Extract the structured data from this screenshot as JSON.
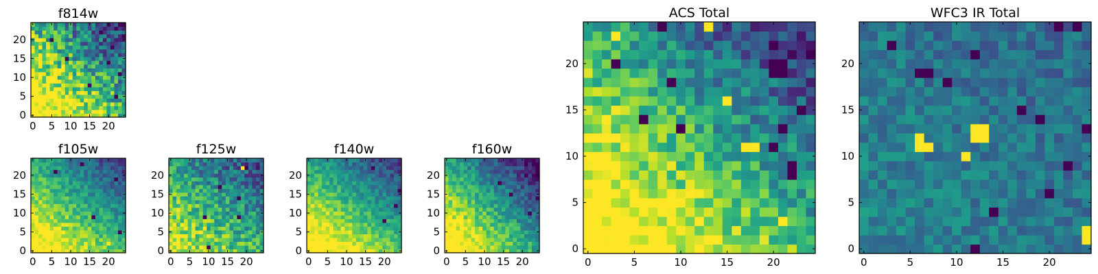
{
  "chart_data": [
    {
      "type": "heatmap",
      "id": "f814w",
      "title": "f814w",
      "colormap": "viridis",
      "grid_size": 25,
      "xlim": [
        0,
        24
      ],
      "ylim": [
        0,
        24
      ],
      "xticks": [
        0,
        5,
        10,
        15,
        20
      ],
      "yticks": [
        0,
        5,
        10,
        15,
        20
      ],
      "value_range": [
        0,
        1
      ],
      "center_brightness": 0.68,
      "gradient": [
        -0.55,
        0.55,
        -0.6,
        0.6
      ],
      "noise": 0.28,
      "blob_bias": 0,
      "dark_cells": [
        [
          18,
          22
        ],
        [
          21,
          18
        ],
        [
          15,
          8
        ],
        [
          22,
          5
        ],
        [
          5,
          20
        ],
        [
          20,
          14
        ],
        [
          23,
          11
        ],
        [
          9,
          15
        ]
      ],
      "bright_cells": [
        [
          2,
          4
        ],
        [
          6,
          7
        ],
        [
          12,
          3
        ]
      ],
      "seed": 11
    },
    {
      "type": "heatmap",
      "id": "f105w",
      "title": "f105w",
      "colormap": "viridis",
      "grid_size": 25,
      "xlim": [
        0,
        24
      ],
      "ylim": [
        0,
        24
      ],
      "xticks": [
        0,
        5,
        10,
        15,
        20
      ],
      "yticks": [
        0,
        5,
        10,
        15,
        20
      ],
      "value_range": [
        0,
        1
      ],
      "center_brightness": 0.66,
      "gradient": [
        -0.45,
        0.45,
        -0.55,
        0.55
      ],
      "noise": 0.14,
      "blob_bias": 0,
      "dark_cells": [
        [
          6,
          21
        ],
        [
          13,
          23
        ],
        [
          23,
          5
        ],
        [
          16,
          9
        ],
        [
          22,
          19
        ]
      ],
      "bright_cells": [
        [
          2,
          3
        ],
        [
          20,
          2
        ]
      ],
      "seed": 23
    },
    {
      "type": "heatmap",
      "id": "f125w",
      "title": "f125w",
      "colormap": "viridis",
      "grid_size": 25,
      "xlim": [
        0,
        24
      ],
      "ylim": [
        0,
        24
      ],
      "xticks": [
        0,
        5,
        10,
        15,
        20
      ],
      "yticks": [
        0,
        5,
        10,
        15,
        20
      ],
      "value_range": [
        0,
        1
      ],
      "center_brightness": 0.6,
      "gradient": [
        -0.35,
        0.35,
        -0.45,
        0.45
      ],
      "noise": 0.22,
      "blob_bias": 0,
      "dark_cells": [
        [
          9,
          9
        ],
        [
          10,
          1
        ],
        [
          18,
          14
        ],
        [
          18,
          9
        ],
        [
          20,
          22
        ],
        [
          13,
          17
        ]
      ],
      "bright_cells": [
        [
          19,
          22
        ],
        [
          4,
          6
        ]
      ],
      "seed": 37
    },
    {
      "type": "heatmap",
      "id": "f140w",
      "title": "f140w",
      "colormap": "viridis",
      "grid_size": 25,
      "xlim": [
        0,
        24
      ],
      "ylim": [
        0,
        24
      ],
      "xticks": [
        0,
        5,
        10,
        15,
        20
      ],
      "yticks": [
        0,
        5,
        10,
        15,
        20
      ],
      "value_range": [
        0,
        1
      ],
      "center_brightness": 0.66,
      "gradient": [
        -0.45,
        0.45,
        -0.6,
        0.6
      ],
      "noise": 0.13,
      "blob_bias": 0,
      "dark_cells": [
        [
          24,
          16
        ],
        [
          20,
          8
        ],
        [
          23,
          12
        ],
        [
          17,
          22
        ]
      ],
      "bright_cells": [
        [
          1,
          1
        ],
        [
          5,
          7
        ]
      ],
      "seed": 41
    },
    {
      "type": "heatmap",
      "id": "f160w",
      "title": "f160w",
      "colormap": "viridis",
      "grid_size": 25,
      "xlim": [
        0,
        24
      ],
      "ylim": [
        0,
        24
      ],
      "xticks": [
        0,
        5,
        10,
        15,
        20
      ],
      "yticks": [
        0,
        5,
        10,
        15,
        20
      ],
      "value_range": [
        0,
        1
      ],
      "center_brightness": 0.6,
      "gradient": [
        -0.6,
        0.6,
        -0.6,
        0.6
      ],
      "noise": 0.15,
      "blob_bias": 0,
      "dark_cells": [
        [
          14,
          18
        ],
        [
          17,
          15
        ],
        [
          21,
          20
        ],
        [
          24,
          14
        ],
        [
          22,
          10
        ]
      ],
      "bright_cells": [
        [
          1,
          2
        ],
        [
          3,
          0
        ]
      ],
      "seed": 53
    },
    {
      "type": "heatmap",
      "id": "acs-total",
      "title": "ACS Total",
      "colormap": "viridis",
      "grid_size": 25,
      "xlim": [
        0,
        24
      ],
      "ylim": [
        0,
        24
      ],
      "xticks": [
        0,
        5,
        10,
        15,
        20
      ],
      "yticks": [
        0,
        5,
        10,
        15,
        20
      ],
      "value_range": [
        0,
        1
      ],
      "center_brightness": 0.66,
      "gradient": [
        -0.55,
        0.55,
        -0.6,
        0.6
      ],
      "noise": 0.2,
      "blob_bias": 0,
      "dark_cells": [
        [
          8,
          24
        ],
        [
          20,
          19
        ],
        [
          21,
          19
        ],
        [
          20,
          20
        ],
        [
          21,
          20
        ],
        [
          9,
          18
        ],
        [
          20,
          22
        ],
        [
          23,
          15
        ],
        [
          10,
          13
        ],
        [
          21,
          13
        ],
        [
          20,
          11
        ],
        [
          22,
          9
        ],
        [
          22,
          8
        ],
        [
          6,
          14
        ],
        [
          3,
          20
        ]
      ],
      "bright_cells": [
        [
          3,
          23
        ],
        [
          13,
          24
        ],
        [
          15,
          16
        ],
        [
          17,
          11
        ],
        [
          18,
          11
        ],
        [
          21,
          3
        ],
        [
          10,
          2
        ],
        [
          8,
          1
        ]
      ],
      "seed": 71
    },
    {
      "type": "heatmap",
      "id": "wfc3-ir-total",
      "title": "WFC3 IR Total",
      "colormap": "viridis",
      "grid_size": 25,
      "xlim": [
        0,
        24
      ],
      "ylim": [
        0,
        24
      ],
      "xticks": [
        0,
        5,
        10,
        15,
        20
      ],
      "yticks": [
        0,
        5,
        10,
        15,
        20
      ],
      "value_range": [
        0,
        1
      ],
      "center_brightness": 0.4,
      "gradient": [
        -0.06,
        0.06,
        -0.06,
        0.06
      ],
      "noise": 0.13,
      "blob_bias": 0,
      "dark_cells": [
        [
          6,
          19
        ],
        [
          7,
          19
        ],
        [
          9,
          18
        ],
        [
          12,
          21
        ],
        [
          21,
          24
        ],
        [
          23,
          24
        ],
        [
          19,
          14
        ],
        [
          17,
          15
        ],
        [
          24,
          13
        ],
        [
          22,
          9
        ],
        [
          14,
          4
        ],
        [
          12,
          0
        ],
        [
          3,
          22
        ],
        [
          20,
          6
        ]
      ],
      "bright_cells": [
        [
          6,
          12
        ],
        [
          6,
          11
        ],
        [
          7,
          11
        ],
        [
          12,
          12
        ],
        [
          13,
          12
        ],
        [
          12,
          13
        ],
        [
          13,
          13
        ],
        [
          11,
          10
        ],
        [
          24,
          2
        ],
        [
          24,
          1
        ]
      ],
      "seed": 97
    }
  ]
}
